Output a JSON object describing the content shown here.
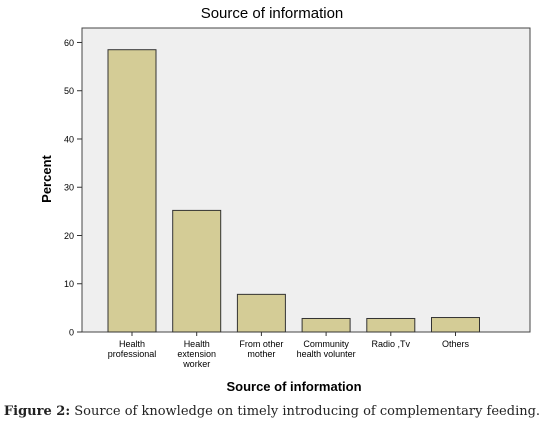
{
  "caption": {
    "label": "Figure 2:",
    "text": "Source of knowledge on timely introducing of complementary feeding."
  },
  "chart_data": {
    "type": "bar",
    "title": "Source of information",
    "xlabel": "Source of information",
    "ylabel": "Percent",
    "categories": [
      [
        "Health",
        "professional"
      ],
      [
        "Health",
        "extension",
        "worker"
      ],
      [
        "From other",
        "mother"
      ],
      [
        "Community",
        "health volunter"
      ],
      [
        "Radio ,Tv"
      ],
      [
        "Others"
      ]
    ],
    "values": [
      58.5,
      25.2,
      7.8,
      2.8,
      2.8,
      3.0
    ],
    "ylim": [
      0,
      63
    ],
    "yticks": [
      0,
      10,
      20,
      30,
      40,
      50,
      60
    ],
    "grid": false,
    "colors": {
      "bar_fill": "#d4cc96",
      "bar_stroke": "#333333",
      "plot_bg": "#efefef",
      "axis": "#333333"
    }
  }
}
